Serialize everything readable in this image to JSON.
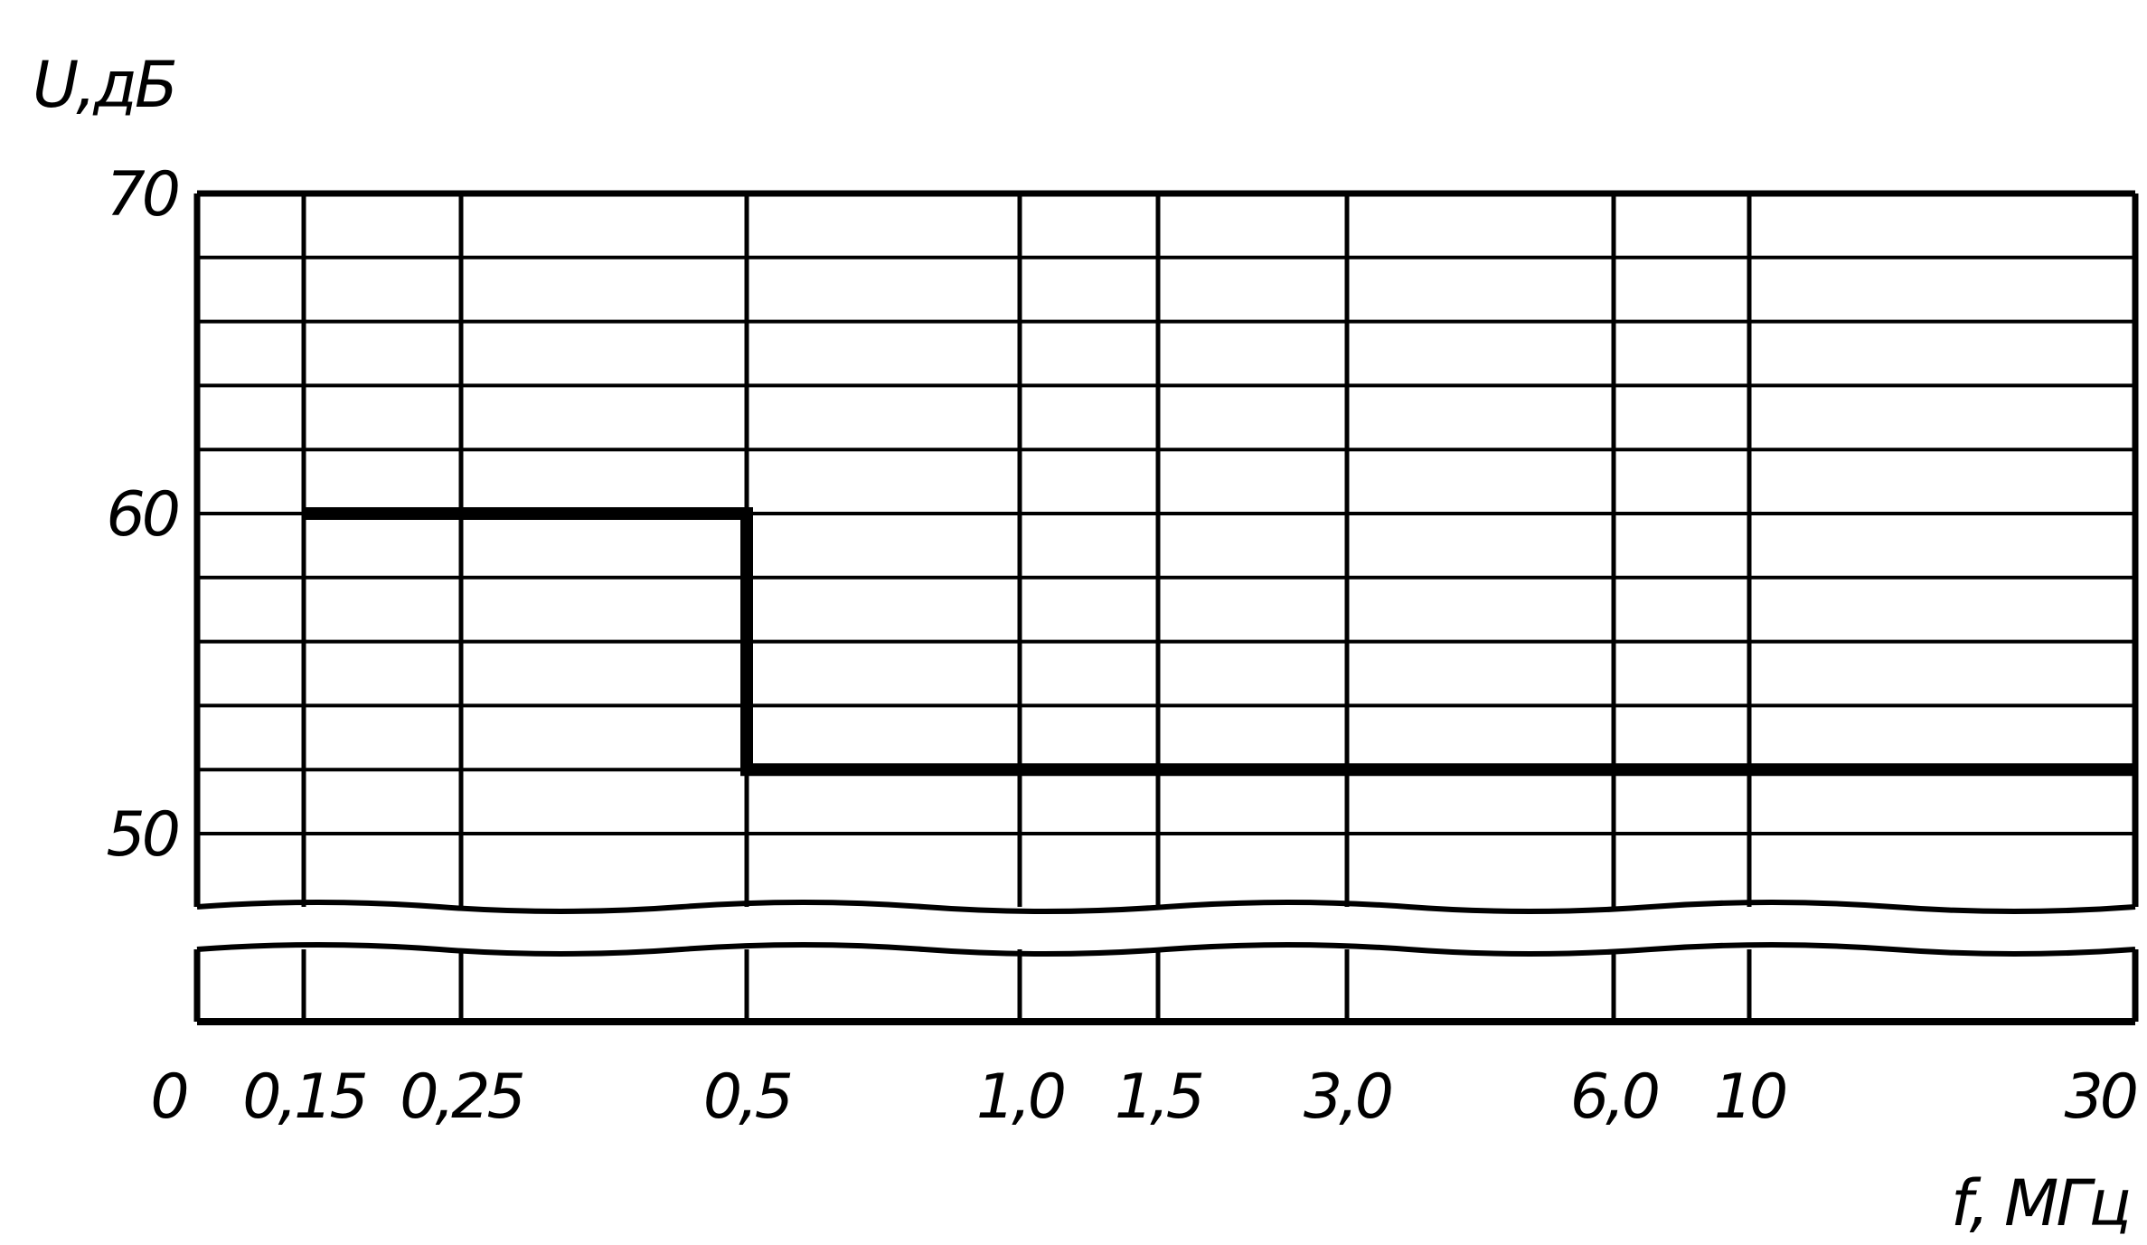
{
  "chart_data": {
    "type": "line",
    "title": "",
    "xlabel": "f, МГц",
    "ylabel": "U,дБ",
    "x_tick_labels": [
      "0",
      "0,15",
      "0,25",
      "0,5",
      "1,0",
      "1,5",
      "3,0",
      "6,0",
      "10",
      "30"
    ],
    "x_ticks": [
      0,
      0.15,
      0.25,
      0.5,
      1.0,
      1.5,
      3.0,
      6.0,
      10,
      30
    ],
    "y_tick_labels": [
      "70",
      "60",
      "50"
    ],
    "y_ticks": [
      70,
      60,
      50
    ],
    "ylim": [
      48,
      70
    ],
    "y_grid_step": 2,
    "y_axis_break": true,
    "grid": true,
    "series": [
      {
        "x": [
          0.15,
          0.5,
          0.5,
          30
        ],
        "y": [
          60,
          60,
          52,
          52
        ]
      }
    ]
  },
  "colors": {
    "ink": "#000000",
    "background": "#ffffff"
  }
}
